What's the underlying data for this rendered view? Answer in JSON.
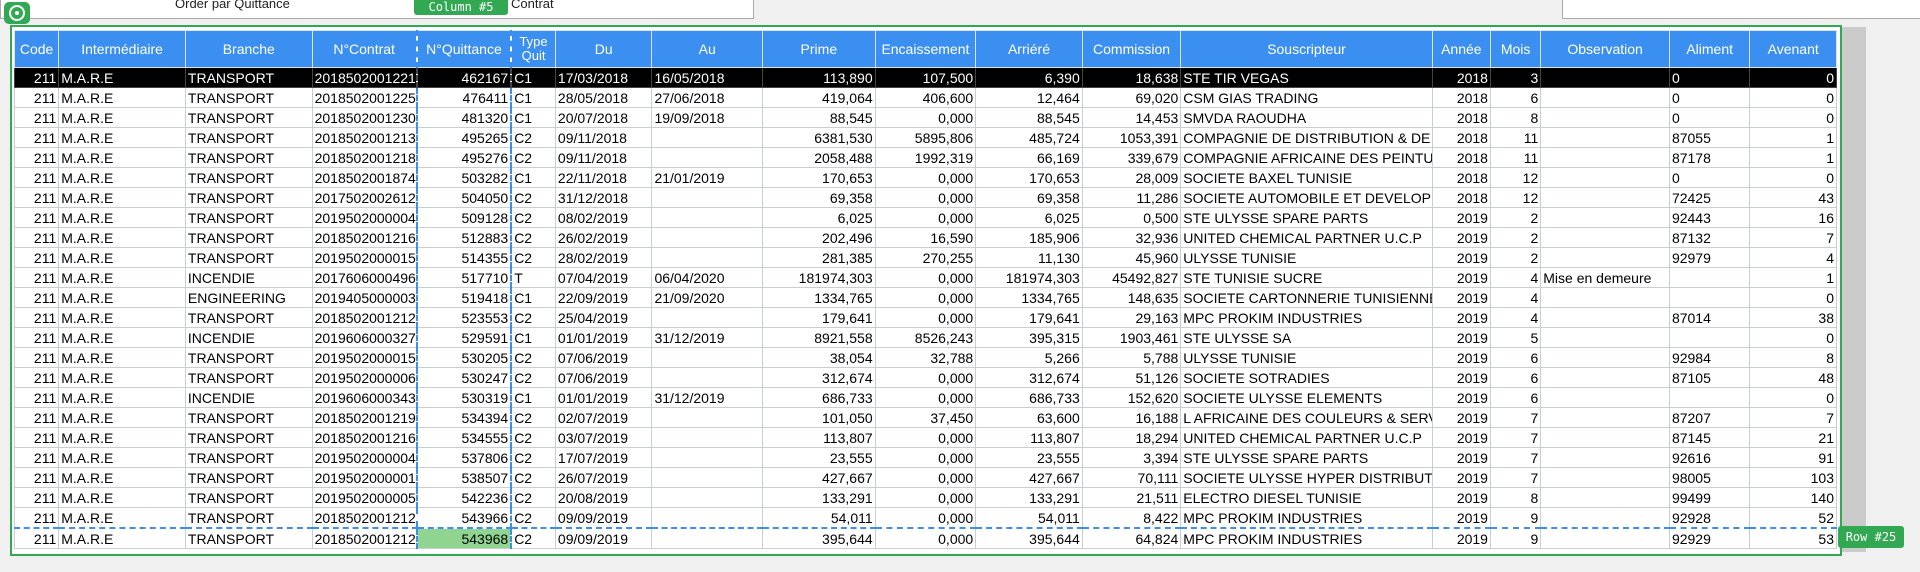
{
  "top": {
    "left_label1": "Order par Quittance",
    "left_label2": "Or",
    "left_label3": "Contrat"
  },
  "overlay": {
    "column_tag": "Column #5",
    "row_tag": "Row #25"
  },
  "table": {
    "headers": [
      "Code",
      "Intermédiaire",
      "Branche",
      "N°Contrat",
      "N°Quittance",
      "Type Quit",
      "Du",
      "Au",
      "Prime",
      "Encaissement",
      "Arriéré",
      "Commission",
      "Souscripteur",
      "Année",
      "Mois",
      "Observation",
      "Aliment",
      "Avenant"
    ],
    "rows": [
      [
        "211",
        "M.A.R.E",
        "TRANSPORT",
        "2018502001221",
        "462167",
        "C1",
        "17/03/2018",
        "16/05/2018",
        "113,890",
        "107,500",
        "6,390",
        "18,638",
        "STE TIR VEGAS",
        "2018",
        "3",
        "",
        "0",
        "0"
      ],
      [
        "211",
        "M.A.R.E",
        "TRANSPORT",
        "2018502001225",
        "476411",
        "C1",
        "28/05/2018",
        "27/06/2018",
        "419,064",
        "406,600",
        "12,464",
        "69,020",
        "CSM  GIAS TRADING",
        "2018",
        "6",
        "",
        "0",
        "0"
      ],
      [
        "211",
        "M.A.R.E",
        "TRANSPORT",
        "2018502001230",
        "481320",
        "C1",
        "20/07/2018",
        "19/09/2018",
        "88,545",
        "0,000",
        "88,545",
        "14,453",
        "SMVDA RAOUDHA",
        "2018",
        "8",
        "",
        "0",
        "0"
      ],
      [
        "211",
        "M.A.R.E",
        "TRANSPORT",
        "2018502001213",
        "495265",
        "C2",
        "09/11/2018",
        "",
        "6381,530",
        "5895,806",
        "485,724",
        "1053,391",
        "COMPAGNIE DE DISTRIBUTION & DE",
        "2018",
        "11",
        "",
        "87055",
        "1"
      ],
      [
        "211",
        "M.A.R.E",
        "TRANSPORT",
        "2018502001218",
        "495276",
        "C2",
        "09/11/2018",
        "",
        "2058,488",
        "1992,319",
        "66,169",
        "339,679",
        "COMPAGNIE AFRICAINE DES PEINTU",
        "2018",
        "11",
        "",
        "87178",
        "1"
      ],
      [
        "211",
        "M.A.R.E",
        "TRANSPORT",
        "2018502001874",
        "503282",
        "C1",
        "22/11/2018",
        "21/01/2019",
        "170,653",
        "0,000",
        "170,653",
        "28,009",
        "SOCIETE BAXEL TUNISIE",
        "2018",
        "12",
        "",
        "0",
        "0"
      ],
      [
        "211",
        "M.A.R.E",
        "TRANSPORT",
        "2017502002612",
        "504050",
        "C2",
        "31/12/2018",
        "",
        "69,358",
        "0,000",
        "69,358",
        "11,286",
        "SOCIETE AUTOMOBILE ET DEVELOPP",
        "2018",
        "12",
        "",
        "72425",
        "43"
      ],
      [
        "211",
        "M.A.R.E",
        "TRANSPORT",
        "2019502000004",
        "509128",
        "C2",
        "08/02/2019",
        "",
        "6,025",
        "0,000",
        "6,025",
        "0,500",
        "STE  ULYSSE  SPARE PARTS",
        "2019",
        "2",
        "",
        "92443",
        "16"
      ],
      [
        "211",
        "M.A.R.E",
        "TRANSPORT",
        "2018502001216",
        "512883",
        "C2",
        "26/02/2019",
        "",
        "202,496",
        "16,590",
        "185,906",
        "32,936",
        "UNITED CHEMICAL PARTNER  U.C.P",
        "2019",
        "2",
        "",
        "87132",
        "7"
      ],
      [
        "211",
        "M.A.R.E",
        "TRANSPORT",
        "2019502000015",
        "514355",
        "C2",
        "28/02/2019",
        "",
        "281,385",
        "270,255",
        "11,130",
        "45,960",
        "ULYSSE TUNISIE",
        "2019",
        "2",
        "",
        "92979",
        "4"
      ],
      [
        "211",
        "M.A.R.E",
        "INCENDIE",
        "2017606000496",
        "517710",
        "T",
        "07/04/2019",
        "06/04/2020",
        "181974,303",
        "0,000",
        "181974,303",
        "45492,827",
        "STE TUNISIE SUCRE",
        "2019",
        "4",
        "Mise en demeure",
        "",
        "1"
      ],
      [
        "211",
        "M.A.R.E",
        "ENGINEERING",
        "2019405000003",
        "519418",
        "C1",
        "22/09/2019",
        "21/09/2020",
        "1334,765",
        "0,000",
        "1334,765",
        "148,635",
        "SOCIETE CARTONNERIE TUNISIENNE",
        "2019",
        "4",
        "",
        "",
        "0"
      ],
      [
        "211",
        "M.A.R.E",
        "TRANSPORT",
        "2018502001212",
        "523553",
        "C2",
        "25/04/2019",
        "",
        "179,641",
        "0,000",
        "179,641",
        "29,163",
        "MPC PROKIM INDUSTRIES",
        "2019",
        "4",
        "",
        "87014",
        "38"
      ],
      [
        "211",
        "M.A.R.E",
        "INCENDIE",
        "2019606000327",
        "529591",
        "C1",
        "01/01/2019",
        "31/12/2019",
        "8921,558",
        "8526,243",
        "395,315",
        "1903,461",
        "STE ULYSSE SA",
        "2019",
        "5",
        "",
        "",
        "0"
      ],
      [
        "211",
        "M.A.R.E",
        "TRANSPORT",
        "2019502000015",
        "530205",
        "C2",
        "07/06/2019",
        "",
        "38,054",
        "32,788",
        "5,266",
        "5,788",
        "ULYSSE TUNISIE",
        "2019",
        "6",
        "",
        "92984",
        "8"
      ],
      [
        "211",
        "M.A.R.E",
        "TRANSPORT",
        "2019502000006",
        "530247",
        "C2",
        "07/06/2019",
        "",
        "312,674",
        "0,000",
        "312,674",
        "51,126",
        "SOCIETE SOTRADIES",
        "2019",
        "6",
        "",
        "87105",
        "48"
      ],
      [
        "211",
        "M.A.R.E",
        "INCENDIE",
        "2019606000343",
        "530319",
        "C1",
        "01/01/2019",
        "31/12/2019",
        "686,733",
        "0,000",
        "686,733",
        "152,620",
        "SOCIETE ULYSSE ELEMENTS",
        "2019",
        "6",
        "",
        "",
        "0"
      ],
      [
        "211",
        "M.A.R.E",
        "TRANSPORT",
        "2018502001219",
        "534394",
        "C2",
        "02/07/2019",
        "",
        "101,050",
        "37,450",
        "63,600",
        "16,188",
        "L AFRICAINE DES COULEURS & SERVI",
        "2019",
        "7",
        "",
        "87207",
        "7"
      ],
      [
        "211",
        "M.A.R.E",
        "TRANSPORT",
        "2018502001216",
        "534555",
        "C2",
        "03/07/2019",
        "",
        "113,807",
        "0,000",
        "113,807",
        "18,294",
        "UNITED CHEMICAL PARTNER  U.C.P",
        "2019",
        "7",
        "",
        "87145",
        "21"
      ],
      [
        "211",
        "M.A.R.E",
        "TRANSPORT",
        "2019502000004",
        "537806",
        "C2",
        "17/07/2019",
        "",
        "23,555",
        "0,000",
        "23,555",
        "3,394",
        "STE  ULYSSE  SPARE PARTS",
        "2019",
        "7",
        "",
        "92616",
        "91"
      ],
      [
        "211",
        "M.A.R.E",
        "TRANSPORT",
        "2019502000001",
        "538507",
        "C2",
        "26/07/2019",
        "",
        "427,667",
        "0,000",
        "427,667",
        "70,111",
        "SOCIETE ULYSSE HYPER DISTRIBUTIO",
        "2019",
        "7",
        "",
        "98005",
        "103"
      ],
      [
        "211",
        "M.A.R.E",
        "TRANSPORT",
        "2019502000005",
        "542236",
        "C2",
        "20/08/2019",
        "",
        "133,291",
        "0,000",
        "133,291",
        "21,511",
        "ELECTRO DIESEL TUNISIE",
        "2019",
        "8",
        "",
        "99499",
        "140"
      ],
      [
        "211",
        "M.A.R.E",
        "TRANSPORT",
        "2018502001212",
        "543966",
        "C2",
        "09/09/2019",
        "",
        "54,011",
        "0,000",
        "54,011",
        "8,422",
        "MPC PROKIM INDUSTRIES",
        "2019",
        "9",
        "",
        "92928",
        "52"
      ],
      [
        "211",
        "M.A.R.E",
        "TRANSPORT",
        "2018502001212",
        "543968",
        "C2",
        "09/09/2019",
        "",
        "395,644",
        "0,000",
        "395,644",
        "64,824",
        "MPC PROKIM INDUSTRIES",
        "2019",
        "9",
        "",
        "92929",
        "53"
      ]
    ]
  }
}
